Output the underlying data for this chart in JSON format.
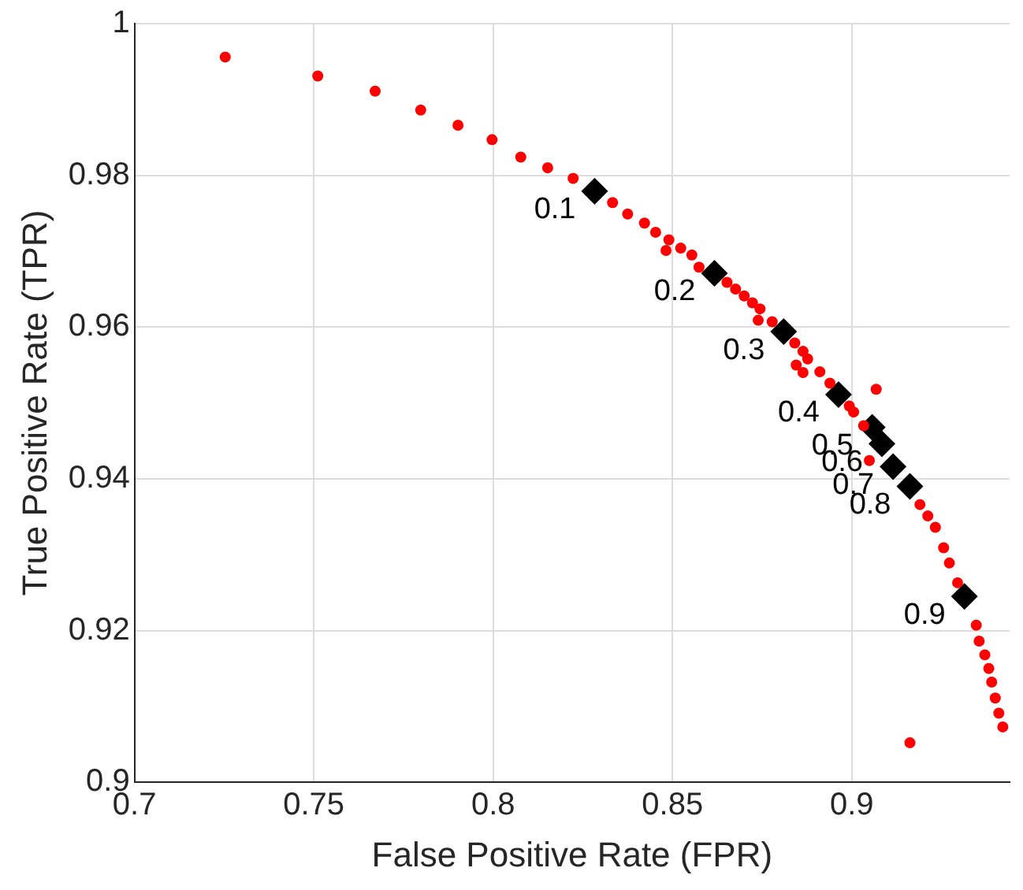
{
  "chart_data": {
    "type": "scatter",
    "xlabel": "False Positive Rate (FPR)",
    "ylabel": "True Positive Rate (TPR)",
    "xlim": [
      0.7,
      0.944
    ],
    "ylim": [
      0.9,
      1
    ],
    "xticks": [
      0.7,
      0.75,
      0.8,
      0.85,
      0.9
    ],
    "yticks": [
      0.9,
      0.92,
      0.94,
      0.96,
      0.98,
      1
    ],
    "grid": true,
    "legend": false,
    "series": [
      {
        "color": "#ff0000",
        "marker": "circle",
        "x": [
          0.7253,
          0.7511,
          0.7671,
          0.7798,
          0.7902,
          0.7997,
          0.8077,
          0.8152,
          0.8223,
          0.8333,
          0.8375,
          0.8422,
          0.8453,
          0.849,
          0.8482,
          0.8523,
          0.8554,
          0.8574,
          0.8652,
          0.8676,
          0.87,
          0.8723,
          0.8744,
          0.8739,
          0.8778,
          0.8841,
          0.8864,
          0.8877,
          0.8845,
          0.8864,
          0.8911,
          0.8939,
          0.8993,
          0.9013,
          0.9068,
          0.9005,
          0.9033,
          0.9049,
          0.919,
          0.9212,
          0.9233,
          0.9256,
          0.9272,
          0.9295,
          0.9347,
          0.9355,
          0.9371,
          0.9382,
          0.939,
          0.94,
          0.941,
          0.9421,
          0.9162
        ],
        "values": [
          0.9956,
          0.9931,
          0.9911,
          0.9886,
          0.9866,
          0.9847,
          0.9824,
          0.981,
          0.9796,
          0.9764,
          0.9749,
          0.9737,
          0.9725,
          0.9715,
          0.9701,
          0.9704,
          0.9695,
          0.9679,
          0.9659,
          0.965,
          0.9641,
          0.9632,
          0.9624,
          0.9609,
          0.9607,
          0.9579,
          0.9568,
          0.9558,
          0.955,
          0.954,
          0.9541,
          0.9526,
          0.9496,
          null,
          0.9518,
          0.9488,
          0.947,
          0.9424,
          0.9366,
          0.9351,
          0.9336,
          0.9309,
          0.9289,
          0.9263,
          0.9207,
          0.9186,
          0.9168,
          0.915,
          0.9132,
          0.9111,
          0.9091,
          0.9073,
          0.9052
        ]
      },
      {
        "color": "#000000",
        "marker": "diamond",
        "x": [
          0.8283,
          0.8617,
          0.881,
          0.8963,
          0.9057,
          0.9084,
          0.9115,
          0.9162,
          0.9314
        ],
        "values": [
          0.9779,
          0.9671,
          0.9594,
          0.9511,
          0.9468,
          0.9446,
          0.9416,
          0.939,
          0.9245
        ]
      }
    ],
    "annotations": [
      {
        "text": "0.1",
        "x": 0.8283,
        "y": 0.9779
      },
      {
        "text": "0.2",
        "x": 0.8617,
        "y": 0.9671
      },
      {
        "text": "0.3",
        "x": 0.881,
        "y": 0.9594
      },
      {
        "text": "0.4",
        "x": 0.8963,
        "y": 0.9511
      },
      {
        "text": "0.5",
        "x": 0.9057,
        "y": 0.9468
      },
      {
        "text": "0.6",
        "x": 0.9084,
        "y": 0.9446
      },
      {
        "text": "0.7",
        "x": 0.9115,
        "y": 0.9416
      },
      {
        "text": "0.8",
        "x": 0.9162,
        "y": 0.939
      },
      {
        "text": "0.9",
        "x": 0.9314,
        "y": 0.9245
      }
    ]
  }
}
